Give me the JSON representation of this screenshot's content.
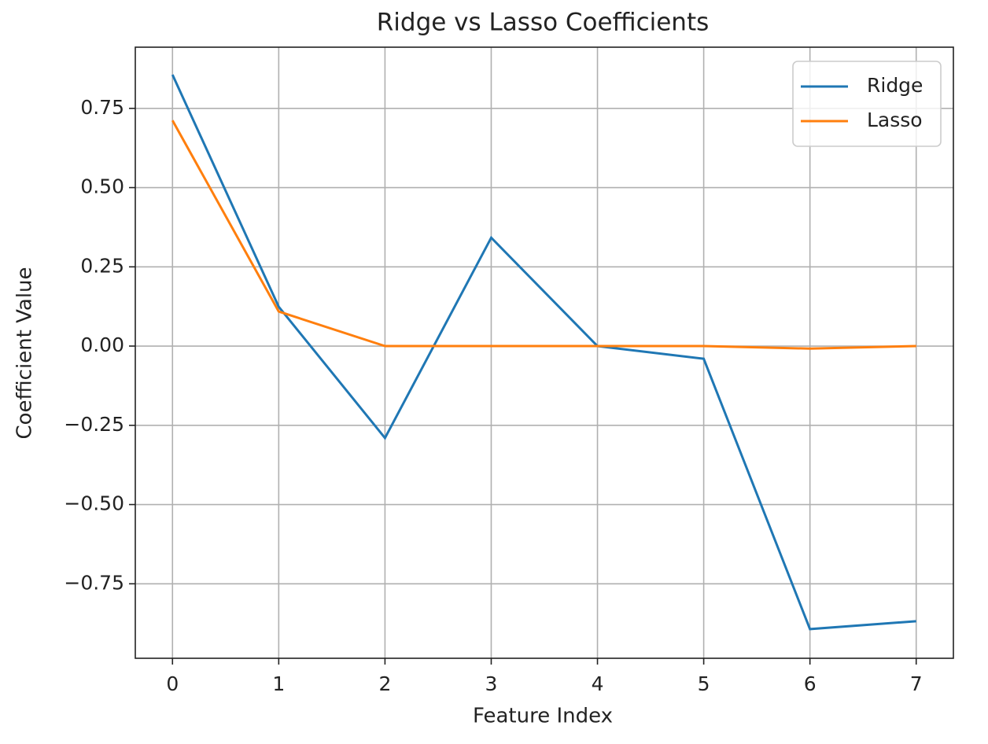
{
  "chart_data": {
    "type": "line",
    "title": "Ridge vs Lasso Coefficients",
    "xlabel": "Feature Index",
    "ylabel": "Coefficient Value",
    "x": [
      0,
      1,
      2,
      3,
      4,
      5,
      6,
      7
    ],
    "series": [
      {
        "name": "Ridge",
        "color": "#1f77b4",
        "values": [
          0.856,
          0.124,
          -0.29,
          0.342,
          0.0,
          -0.04,
          -0.893,
          -0.868
        ]
      },
      {
        "name": "Lasso",
        "color": "#ff7f0e",
        "values": [
          0.712,
          0.109,
          0.0,
          0.0,
          0.0,
          0.0,
          -0.008,
          0.0
        ]
      }
    ],
    "xlim": [
      -0.35,
      7.35
    ],
    "ylim": [
      -0.985,
      0.943
    ],
    "xticks": [
      0,
      1,
      2,
      3,
      4,
      5,
      6,
      7
    ],
    "yticks": [
      {
        "value": -0.75,
        "label": "−0.75"
      },
      {
        "value": -0.5,
        "label": "−0.50"
      },
      {
        "value": -0.25,
        "label": "−0.25"
      },
      {
        "value": 0,
        "label": "0.00"
      },
      0.25,
      {
        "value": 0.5,
        "label": "0.50"
      },
      0.75
    ],
    "grid": true,
    "legend": "upper-right"
  }
}
